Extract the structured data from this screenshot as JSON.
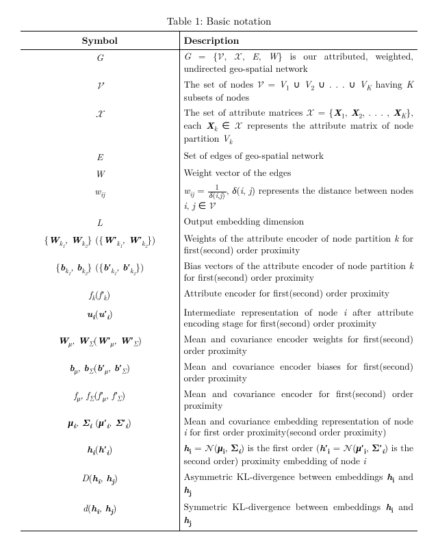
{
  "caption": "Table 1: Basic notation",
  "headers": {
    "symbol": "Symbol",
    "description": "Description"
  },
  "rows": [
    {
      "sym": "<i>G</i>",
      "desc": "<i>G</i> = {<span class='cal'>𝒱</span>, <span class='cal'>𝒳</span>, <i>E</i>, <i>W</i>} is our attributed, weighted, undirected geo-spatial network"
    },
    {
      "sym": "<span class='cal'>𝒱</span>",
      "desc": "The set of nodes <span class='cal'>𝒱</span> = <i>V</i><sub>1</sub> ∪ <i>V</i><sub>2</sub> ∪ . . . ∪ <i>V</i><sub><i>K</i></sub> having <i>K</i> subsets of nodes"
    },
    {
      "sym": "<span class='cal'>𝒳</span>",
      "desc": "The set of attribute matrices <span class='cal'>𝒳</span> = {<b><i>X</i></b><sub>1</sub>, <b><i>X</i></b><sub>2</sub>, . . . , <b><i>X</i></b><sub><i>K</i></sub>}, each <b><i>X</i></b><sub><i>k</i></sub> ∈ <span class='cal'>𝒳</span> represents the attribute matrix of node partition <i>V</i><sub><i>k</i></sub>"
    },
    {
      "sym": "<i>E</i>",
      "desc": "Set of edges of geo-spatial network"
    },
    {
      "sym": "<i>W</i>",
      "desc": "Weight vector of the edges"
    },
    {
      "sym": "<i>w</i><sub><i>ij</i></sub>",
      "desc": "<i>w</i><sub><i>ij</i></sub> = <span class='frac'><span class='num'>1</span><span class='den'><i>δ</i>(<i>i</i>,<i>j</i>)</span></span>, <i>δ</i>(<i>i</i>, <i>j</i>) represents the distance between nodes <i>i</i>, <i>j</i> ∈ <span class='cal'>𝒱</span>"
    },
    {
      "sym": "<i>L</i>",
      "desc": "Output embedding dimension"
    },
    {
      "sym": "<span class='rm'>{</span><b><i>W</i></b><sub><i>k</i><sub>1</sub></sub>, <b><i>W</i></b><sub><i>k</i><sub>2</sub></sub><span class='rm'>}</span> <span class='rm'>(</span><span class='rm'>{</span><b><i>W</i>′</b><sub><i>k</i><sub>1</sub></sub>, <b><i>W</i>′</b><sub><i>k</i><sub>2</sub></sub><span class='rm'>}</span><span class='rm'>)</span>",
      "desc": "Weights of the attribute encoder of node partition <i>k</i> for first(second) order proximity"
    },
    {
      "sym": "<span class='rm'>{</span><b><i>b</i></b><sub><i>k</i><sub>1</sub></sub>, <b><i>b</i></b><sub><i>k</i><sub>2</sub></sub><span class='rm'>}</span> <span class='rm'>(</span><span class='rm'>{</span><b><i>b</i>′</b><sub><i>k</i><sub>1</sub></sub>, <b><i>b</i>′</b><sub><i>k</i><sub>2</sub></sub><span class='rm'>}</span><span class='rm'>)</span>",
      "desc": "Bias vectors of the attribute encoder of node partition <i>k</i> for first(second) order proximity"
    },
    {
      "sym": "<i>f</i><sub><i>k</i></sub><span class='rm'>(</span><i>f</i>′<sub><i>k</i></sub><span class='rm'>)</span>",
      "desc": "Attribute encoder for first(second) order proximity"
    },
    {
      "sym": "<b><i>u</i><sub>i</sub></b><span class='rm'>(</span><b><i>u</i>′<sub>i</sub></b><span class='rm'>)</span>",
      "desc": "Intermediate representation of node <i>i</i> after attribute encoding stage for first(second) order proximity"
    },
    {
      "sym": "<b><i>W</i></b><sub><i>μ</i></sub>, <b><i>W</i></b><sub>Σ</sub><span class='rm'>(</span><b><i>W</i>′</b><sub><i>μ</i></sub>, <b><i>W</i>′</b><sub>Σ</sub><span class='rm'>)</span>",
      "desc": "Mean and covariance encoder weights for first(second) order proximity"
    },
    {
      "sym": "<b><i>b</i></b><sub><i>μ</i></sub>, <b><i>b</i></b><sub>Σ</sub><span class='rm'>(</span><b><i>b</i>′</b><sub><i>μ</i></sub>, <b><i>b</i>′</b><sub>Σ</sub><span class='rm'>)</span>",
      "desc": "Mean and covariance encoder biases for first(second) order proximity"
    },
    {
      "sym": "<i>f</i><sub><i>μ</i></sub>, <i>f</i><sub>Σ</sub><span class='rm'>(</span><i>f</i>′<sub><i>μ</i></sub>, <i>f</i>′<sub>Σ</sub><span class='rm'>)</span>",
      "desc": "Mean and covariance encoder for first(second) order proximity"
    },
    {
      "sym": "<b><i>μ</i><sub>i</sub></b>, <b>Σ<sub><i>i</i></sub></b> <span class='rm'>(</span><b><i>μ</i>′<sub>i</sub></b>, <b>Σ′<sub><i>i</i></sub></b><span class='rm'>)</span>",
      "desc": "Mean and covariance embedding representation of node <i>i</i> for first order proximity(second order proximity)"
    },
    {
      "sym": "<b><i>h</i><sub>i</sub></b><span class='rm'>(</span><b><i>h</i>′<sub>i</sub></b><span class='rm'>)</span>",
      "desc": "<b><i>h</i><sub>i</sub></b> = <span class='cal'>𝒩</span>(<b><i>μ</i><sub>i</sub></b>, <b>Σ<sub><i>i</i></sub></b>) is the first order (<b><i>h</i>′<sub>i</sub></b> = <span class='cal'>𝒩</span>(<b><i>μ</i>′<sub>i</sub></b>, <b>Σ′<sub><i>i</i></sub></b>) is the second order) proximity embedding of node <i>i</i>"
    },
    {
      "sym": "<i>D</i><span class='rm'>(</span><b><i>h</i><sub>i</sub></b>, <b><i>h</i><sub>j</sub></b><span class='rm'>)</span>",
      "desc": "Asymmetric KL-divergence between embeddings <b><i>h</i><sub>i</sub></b> and <b><i>h</i><sub>j</sub></b>"
    },
    {
      "sym": "<i>d</i><span class='rm'>(</span><b><i>h</i><sub>i</sub></b>, <b><i>h</i><sub>j</sub></b><span class='rm'>)</span>",
      "desc": "Symmetric KL-divergence between embeddings <b><i>h</i><sub>i</sub></b> and <b><i>h</i><sub>j</sub></b>"
    }
  ]
}
